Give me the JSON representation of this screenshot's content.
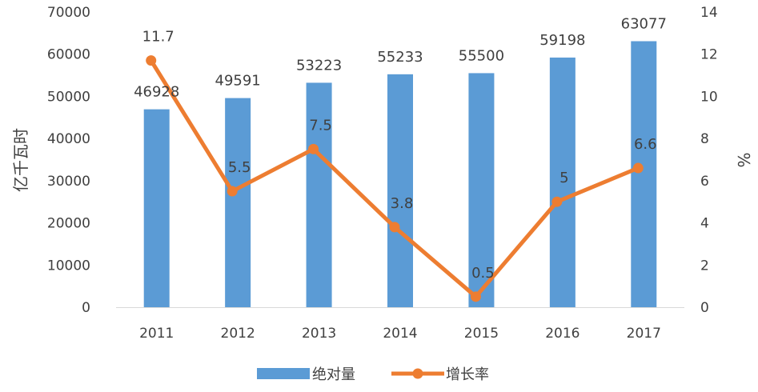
{
  "chart_data": {
    "type": "bar+line",
    "categories": [
      "2011",
      "2012",
      "2013",
      "2014",
      "2015",
      "2016",
      "2017"
    ],
    "series": [
      {
        "name": "绝对量",
        "type": "bar",
        "axis": "left",
        "color": "#5B9BD5",
        "values": [
          46928,
          49591,
          53223,
          55233,
          55500,
          59198,
          63077
        ],
        "labels": [
          "46928",
          "49591",
          "53223",
          "55233",
          "55500",
          "59198",
          "63077"
        ]
      },
      {
        "name": "增长率",
        "type": "line",
        "axis": "right",
        "color": "#ED7D31",
        "values": [
          11.7,
          5.5,
          7.5,
          3.8,
          0.5,
          5,
          6.6
        ],
        "labels": [
          "11.7",
          "5.5",
          "7.5",
          "3.8",
          "0.5",
          "5",
          "6.6"
        ]
      }
    ],
    "y_left": {
      "label": "亿千瓦时",
      "range": [
        0,
        70000
      ],
      "ticks": [
        "0",
        "10000",
        "20000",
        "30000",
        "40000",
        "50000",
        "60000",
        "70000"
      ]
    },
    "y_right": {
      "label": "%",
      "range": [
        0,
        14
      ],
      "ticks": [
        "0",
        "2",
        "4",
        "6",
        "8",
        "10",
        "12",
        "14"
      ]
    },
    "grid": false,
    "legend": "bottom-center"
  }
}
